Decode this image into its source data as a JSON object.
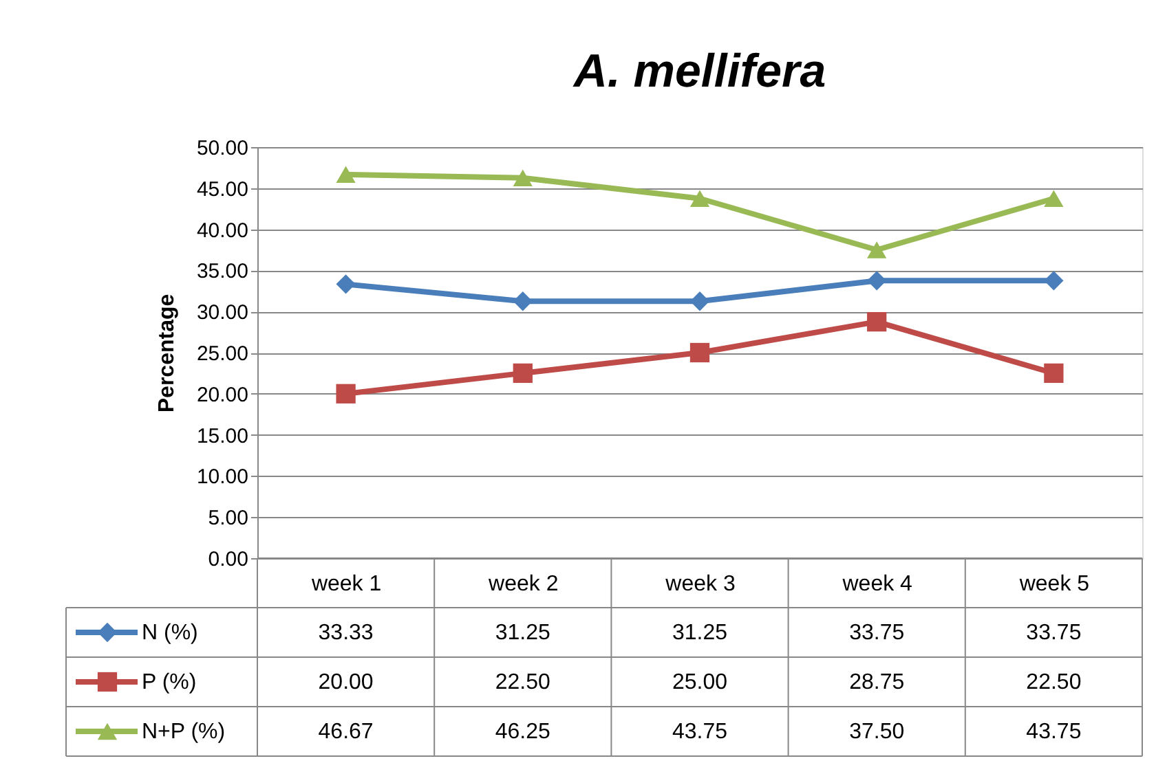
{
  "chart_data": {
    "type": "line",
    "title": "A. mellifera",
    "ylabel": "Percentage",
    "categories": [
      "week 1",
      "week 2",
      "week 3",
      "week 4",
      "week 5"
    ],
    "series": [
      {
        "name": "N (%)",
        "color": "#4a7ebb",
        "marker": "diamond",
        "values": [
          33.33,
          31.25,
          31.25,
          33.75,
          33.75
        ],
        "value_labels": [
          "33.33",
          "31.25",
          "31.25",
          "33.75",
          "33.75"
        ]
      },
      {
        "name": "P (%)",
        "color": "#be4b48",
        "marker": "square",
        "values": [
          20.0,
          22.5,
          25.0,
          28.75,
          22.5
        ],
        "value_labels": [
          "20.00",
          "22.50",
          "25.00",
          "28.75",
          "22.50"
        ]
      },
      {
        "name": "N+P (%)",
        "color": "#98b954",
        "marker": "triangle",
        "values": [
          46.67,
          46.25,
          43.75,
          37.5,
          43.75
        ],
        "value_labels": [
          "46.67",
          "46.25",
          "43.75",
          "37.50",
          "43.75"
        ]
      }
    ],
    "ylim": [
      0,
      50
    ],
    "yticks": [
      {
        "value": 0,
        "label": "0.00"
      },
      {
        "value": 5,
        "label": "5.00"
      },
      {
        "value": 10,
        "label": "10.00"
      },
      {
        "value": 15,
        "label": "15.00"
      },
      {
        "value": 20,
        "label": "20.00"
      },
      {
        "value": 25,
        "label": "25.00"
      },
      {
        "value": 30,
        "label": "30.00"
      },
      {
        "value": 35,
        "label": "35.00"
      },
      {
        "value": 40,
        "label": "40.00"
      },
      {
        "value": 45,
        "label": "45.00"
      },
      {
        "value": 50,
        "label": "50.00"
      }
    ],
    "grid": "y",
    "legend": "bottom",
    "data_labels": true
  }
}
